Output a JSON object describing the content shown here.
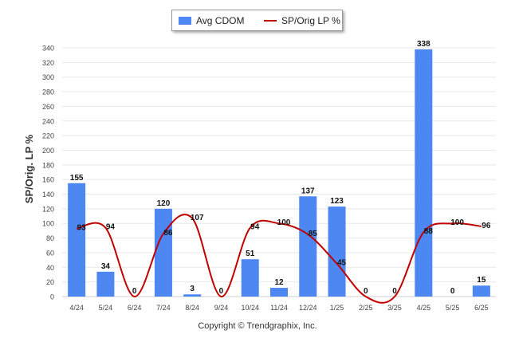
{
  "legend": {
    "bar_label": "Avg CDOM",
    "line_label": "SP/Orig LP %"
  },
  "copyright": "Copyright © Trendgraphix, Inc.",
  "colors": {
    "bar": "#4d87f2",
    "line": "#c00000",
    "grid": "#e8e8e8"
  },
  "chart_data": {
    "type": "bar",
    "categories": [
      "4/24",
      "5/24",
      "6/24",
      "7/24",
      "8/24",
      "9/24",
      "10/24",
      "11/24",
      "12/24",
      "1/25",
      "2/25",
      "3/25",
      "4/25",
      "5/25",
      "6/25"
    ],
    "series": [
      {
        "name": "Avg CDOM",
        "type": "bar",
        "values": [
          155,
          34,
          0,
          120,
          3,
          0,
          51,
          12,
          137,
          123,
          0,
          0,
          338,
          0,
          15
        ]
      },
      {
        "name": "SP/Orig LP %",
        "type": "line",
        "values": [
          93,
          94,
          0,
          86,
          107,
          0,
          94,
          100,
          85,
          45,
          0,
          0,
          88,
          100,
          96
        ]
      }
    ],
    "ylabel": "SP/Orig. LP %",
    "ylim": [
      0,
      340
    ],
    "yticks": [
      0,
      20,
      40,
      60,
      80,
      100,
      120,
      140,
      160,
      180,
      200,
      220,
      240,
      260,
      280,
      300,
      320,
      340
    ],
    "grid": true,
    "legend_position": "top"
  }
}
